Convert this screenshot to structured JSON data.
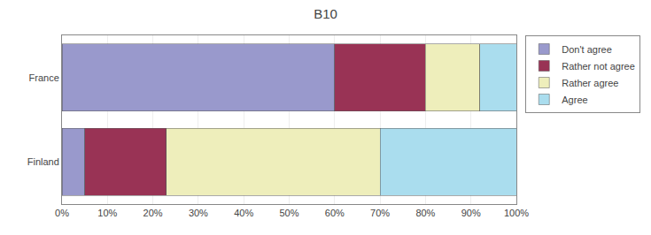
{
  "chart_data": {
    "type": "bar",
    "orientation": "horizontal",
    "stacked": true,
    "title": "B10",
    "categories": [
      "Finland",
      "France"
    ],
    "series": [
      {
        "name": "Don't agree",
        "color": "#9999cc",
        "values": [
          5,
          60
        ]
      },
      {
        "name": "Rather not agree",
        "color": "#993355",
        "values": [
          18,
          20
        ]
      },
      {
        "name": "Rather agree",
        "color": "#eeeebb",
        "values": [
          47,
          12
        ]
      },
      {
        "name": "Agree",
        "color": "#aaddee",
        "values": [
          30,
          8
        ]
      }
    ],
    "xlim": [
      0,
      100
    ],
    "xticks": [
      {
        "value": 0,
        "label": "0%"
      },
      {
        "value": 10,
        "label": "10%"
      },
      {
        "value": 20,
        "label": "20%"
      },
      {
        "value": 30,
        "label": "30%"
      },
      {
        "value": 40,
        "label": "40%"
      },
      {
        "value": 50,
        "label": "50%"
      },
      {
        "value": 60,
        "label": "60%"
      },
      {
        "value": 70,
        "label": "70%"
      },
      {
        "value": 80,
        "label": "80%"
      },
      {
        "value": 90,
        "label": "90%"
      },
      {
        "value": 100,
        "label": "100%"
      }
    ],
    "grid": true,
    "legend": "upper right"
  }
}
